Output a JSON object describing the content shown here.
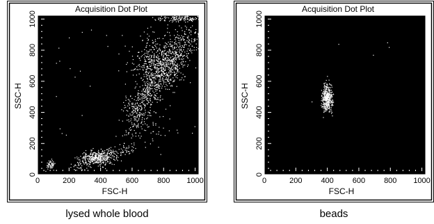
{
  "chart_data": [
    {
      "type": "scatter",
      "title": "Acquisition Dot Plot",
      "xlabel": "FSC-H",
      "ylabel": "SSC-H",
      "xlim": [
        0,
        1024
      ],
      "ylim": [
        0,
        1024
      ],
      "x_ticks": [
        "0",
        "200",
        "400",
        "600",
        "800",
        "1000"
      ],
      "y_ticks": [
        "0",
        "200",
        "400",
        "600",
        "800",
        "1000"
      ],
      "background": "#000000",
      "point_color": "#ffffff",
      "caption": "lysed whole blood",
      "populations": [
        {
          "kind": "cluster",
          "cx": 80,
          "cy": 65,
          "sx": 15,
          "sy": 15,
          "n": 55
        },
        {
          "kind": "cluster",
          "cx": 380,
          "cy": 110,
          "sx": 55,
          "sy": 22,
          "n": 340
        },
        {
          "kind": "band",
          "x0": 220,
          "y0": 60,
          "x1": 600,
          "y1": 170,
          "spread": 22,
          "n": 140
        },
        {
          "kind": "band",
          "x0": 560,
          "y0": 180,
          "x1": 640,
          "y1": 420,
          "spread": 28,
          "n": 70
        },
        {
          "kind": "band",
          "x0": 600,
          "y0": 380,
          "x1": 980,
          "y1": 920,
          "spread": 45,
          "n": 700
        },
        {
          "kind": "cluster",
          "cx": 770,
          "cy": 720,
          "sx": 80,
          "sy": 80,
          "n": 500
        },
        {
          "kind": "cluster",
          "cx": 900,
          "cy": 1005,
          "sx": 70,
          "sy": 10,
          "n": 130
        },
        {
          "kind": "cluster",
          "cx": 720,
          "cy": 320,
          "sx": 70,
          "sy": 60,
          "n": 50
        },
        {
          "kind": "uniform",
          "x0": 100,
          "y0": 100,
          "x1": 1000,
          "y1": 950,
          "n": 35
        }
      ]
    },
    {
      "type": "scatter",
      "title": "Acquisition Dot Plot",
      "xlabel": "FSC-H",
      "ylabel": "SSC-H",
      "xlim": [
        0,
        1024
      ],
      "ylim": [
        0,
        1024
      ],
      "x_ticks": [
        "0",
        "200",
        "400",
        "600",
        "800",
        "1000"
      ],
      "y_ticks": [
        "0",
        "200",
        "400",
        "600",
        "800",
        "1000"
      ],
      "background": "#000000",
      "point_color": "#ffffff",
      "caption": "beads",
      "populations": [
        {
          "kind": "cluster",
          "cx": 398,
          "cy": 490,
          "sx": 16,
          "sy": 45,
          "n": 420
        },
        {
          "kind": "points",
          "x": [
            470,
            780,
            790,
            690,
            300,
            430
          ],
          "y": [
            840,
            850,
            820,
            770,
            470,
            380
          ]
        }
      ]
    }
  ]
}
